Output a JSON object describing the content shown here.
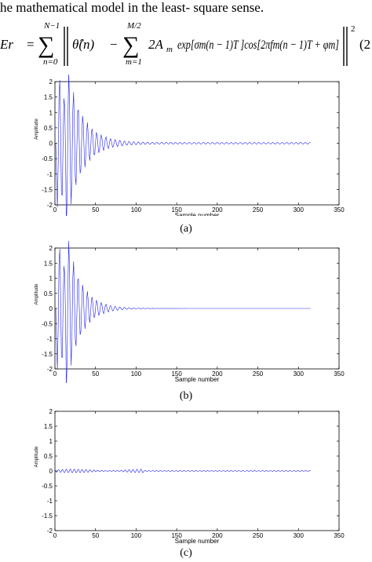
{
  "intro_text": "he mathematical model in the least- square sense.",
  "equation": {
    "lhs": "Er",
    "outer_sum_upper": "N−1",
    "outer_sum_lower": "n=0",
    "theta_hat": "θ̂(n)",
    "inner_sum_upper": "M/2",
    "inner_sum_lower": "m=1",
    "term": "2A",
    "term_sub": "m",
    "body": "exp[σ",
    "body_full": "exp[σm(n − 1)T ]cos[2πfm(n − 1)T + φm]",
    "exponent": "2",
    "number": "(2"
  },
  "chart_data": [
    {
      "type": "line",
      "caption": "(a)",
      "xlabel": "Sample number",
      "ylabel": "Amplitude",
      "xlim": [
        0,
        350
      ],
      "ylim": [
        -2,
        2
      ],
      "xticks": [
        0,
        50,
        100,
        150,
        200,
        250,
        300,
        350
      ],
      "yticks": [
        2,
        1.5,
        1,
        0.5,
        0,
        -0.5,
        -1,
        -1.5,
        -2
      ],
      "xtick_labels": [
        "0",
        "50",
        "100",
        "150",
        "200",
        "250",
        "300",
        "350"
      ],
      "ytick_labels": [
        "2",
        "1.5",
        "1",
        "0.5",
        "0",
        "-0.5",
        "-1",
        "-1.5",
        "-2"
      ],
      "grid": false,
      "line_color": "#2222ee",
      "n_samples": 316,
      "signal": "decaying oscillation: bursts to about +1.5 near n=5 and to about -1.8 near n=20-25, decaying to a small residual (about ±0.03) by n≈100"
    },
    {
      "type": "line",
      "caption": "(b)",
      "xlabel": "Sample number",
      "ylabel": "Amplitude",
      "xlim": [
        0,
        350
      ],
      "ylim": [
        -2,
        2
      ],
      "xticks": [
        0,
        50,
        100,
        150,
        200,
        250,
        300,
        350
      ],
      "yticks": [
        2,
        1.5,
        1,
        0.5,
        0,
        -0.5,
        -1,
        -1.5,
        -2
      ],
      "xtick_labels": [
        "0",
        "50",
        "100",
        "150",
        "200",
        "250",
        "300",
        "350"
      ],
      "ytick_labels": [
        "2",
        "1.5",
        "1",
        "0.5",
        "0",
        "-0.5",
        "-1",
        "-1.5",
        "-2"
      ],
      "grid": false,
      "line_color": "#2222ee",
      "n_samples": 316,
      "signal": "fitted model: same decaying oscillation as (a), peaking near +1.5 at n≈5 and about -1.8 near n≈20, decaying to essentially zero by n≈100"
    },
    {
      "type": "line",
      "caption": "(c)",
      "xlabel": "Sample number",
      "ylabel": "Amplitude",
      "xlim": [
        0,
        350
      ],
      "ylim": [
        -2,
        2
      ],
      "xticks": [
        0,
        50,
        100,
        150,
        200,
        250,
        300,
        350
      ],
      "yticks": [
        2,
        1.5,
        1,
        0.5,
        0,
        -0.5,
        -1,
        -1.5,
        -2
      ],
      "xtick_labels": [
        "0",
        "50",
        "100",
        "150",
        "200",
        "250",
        "300",
        "350"
      ],
      "ytick_labels": [
        "2",
        "1.5",
        "1",
        "0.5",
        "0",
        "-0.5",
        "-1",
        "-1.5",
        "-2"
      ],
      "grid": false,
      "line_color": "#2222ee",
      "n_samples": 316,
      "signal": "residual error: small oscillation within about ±0.07, largest over n≈0-110, near zero afterwards"
    }
  ]
}
